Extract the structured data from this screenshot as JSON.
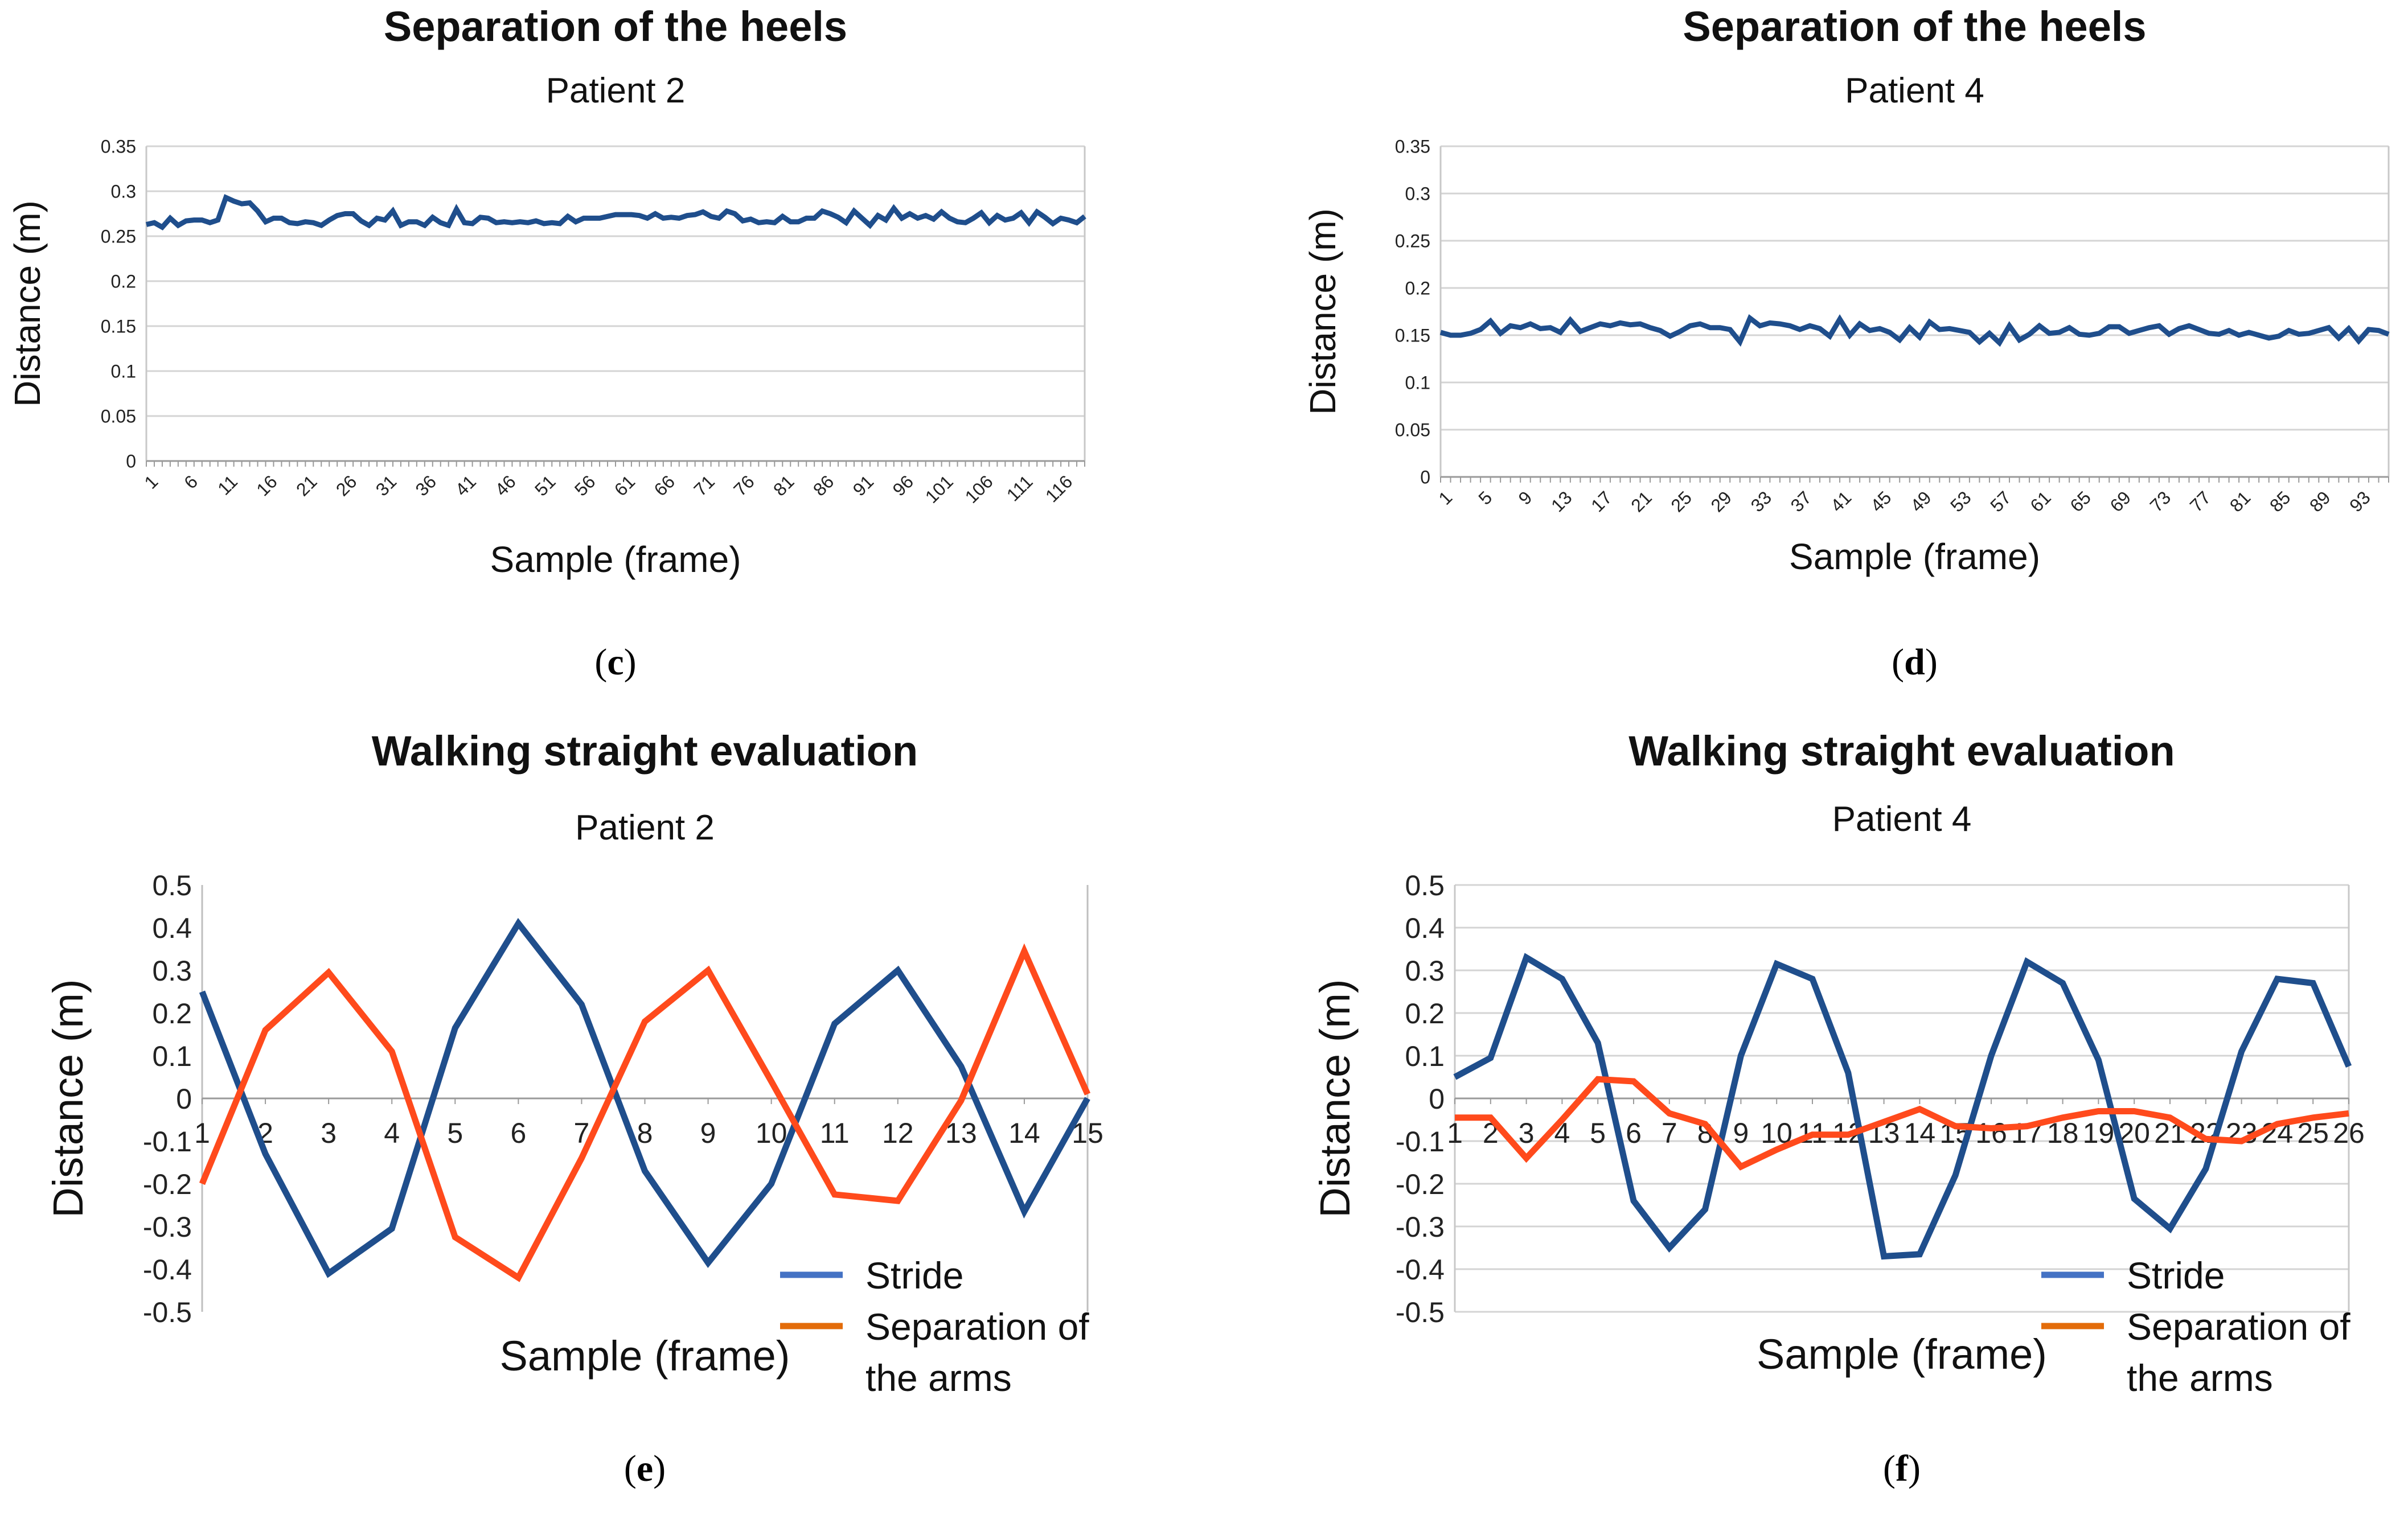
{
  "chart_data": [
    {
      "id": "c",
      "type": "line",
      "title": "Separation of the heels",
      "subtitle": "Patient 2",
      "xlabel": "Sample (frame)",
      "ylabel": "Distance (m)",
      "ylim": [
        0,
        0.35
      ],
      "yticks": [
        "0",
        "0.05",
        "0.1",
        "0.15",
        "0.2",
        "0.25",
        "0.3",
        "0.35"
      ],
      "grid": true,
      "xtick_step": 5,
      "caption": "c",
      "series": [
        {
          "name": "Separation of the heels",
          "color": "#1f4e8c",
          "values": [
            0.263,
            0.265,
            0.26,
            0.27,
            0.262,
            0.267,
            0.268,
            0.268,
            0.265,
            0.268,
            0.293,
            0.289,
            0.286,
            0.287,
            0.278,
            0.266,
            0.27,
            0.27,
            0.265,
            0.264,
            0.266,
            0.265,
            0.262,
            0.268,
            0.273,
            0.275,
            0.275,
            0.267,
            0.262,
            0.27,
            0.268,
            0.278,
            0.262,
            0.266,
            0.266,
            0.262,
            0.271,
            0.265,
            0.262,
            0.28,
            0.265,
            0.264,
            0.271,
            0.27,
            0.265,
            0.266,
            0.265,
            0.266,
            0.265,
            0.267,
            0.264,
            0.265,
            0.264,
            0.272,
            0.266,
            0.27,
            0.27,
            0.27,
            0.272,
            0.274,
            0.274,
            0.274,
            0.273,
            0.27,
            0.275,
            0.27,
            0.271,
            0.27,
            0.273,
            0.274,
            0.277,
            0.272,
            0.27,
            0.278,
            0.275,
            0.267,
            0.269,
            0.265,
            0.266,
            0.265,
            0.272,
            0.266,
            0.266,
            0.27,
            0.27,
            0.278,
            0.275,
            0.271,
            0.265,
            0.278,
            0.27,
            0.262,
            0.273,
            0.268,
            0.281,
            0.27,
            0.275,
            0.27,
            0.273,
            0.269,
            0.277,
            0.27,
            0.266,
            0.265,
            0.27,
            0.276,
            0.265,
            0.273,
            0.268,
            0.27,
            0.276,
            0.265,
            0.277,
            0.271,
            0.264,
            0.27,
            0.268,
            0.265,
            0.272
          ]
        }
      ]
    },
    {
      "id": "d",
      "type": "line",
      "title": "Separation of the heels",
      "subtitle": "Patient 4",
      "xlabel": "Sample (frame)",
      "ylabel": "Distance (m)",
      "ylim": [
        0,
        0.35
      ],
      "yticks": [
        "0",
        "0.05",
        "0.1",
        "0.15",
        "0.2",
        "0.25",
        "0.3",
        "0.35"
      ],
      "grid": true,
      "xtick_step": 4,
      "caption": "d",
      "series": [
        {
          "name": "Separation of the heels",
          "color": "#1f4e8c",
          "values": [
            0.153,
            0.15,
            0.15,
            0.152,
            0.156,
            0.165,
            0.152,
            0.16,
            0.158,
            0.162,
            0.157,
            0.158,
            0.153,
            0.166,
            0.154,
            0.158,
            0.162,
            0.16,
            0.163,
            0.161,
            0.162,
            0.158,
            0.155,
            0.149,
            0.154,
            0.16,
            0.162,
            0.158,
            0.158,
            0.156,
            0.143,
            0.168,
            0.16,
            0.163,
            0.162,
            0.16,
            0.156,
            0.16,
            0.157,
            0.149,
            0.167,
            0.15,
            0.162,
            0.155,
            0.157,
            0.153,
            0.145,
            0.158,
            0.148,
            0.164,
            0.156,
            0.157,
            0.155,
            0.153,
            0.143,
            0.152,
            0.142,
            0.16,
            0.145,
            0.151,
            0.16,
            0.152,
            0.153,
            0.158,
            0.151,
            0.15,
            0.152,
            0.159,
            0.159,
            0.152,
            0.155,
            0.158,
            0.16,
            0.151,
            0.157,
            0.16,
            0.156,
            0.152,
            0.151,
            0.155,
            0.15,
            0.153,
            0.15,
            0.147,
            0.149,
            0.155,
            0.151,
            0.152,
            0.155,
            0.158,
            0.147,
            0.157,
            0.144,
            0.156,
            0.155,
            0.151
          ]
        }
      ]
    },
    {
      "id": "e",
      "type": "line",
      "title": "Walking straight evaluation",
      "subtitle": "Patient 2",
      "xlabel": "Sample (frame)",
      "ylabel": "Distance (m)",
      "ylim": [
        -0.5,
        0.5
      ],
      "yticks": [
        "-0.5",
        "-0.4",
        "-0.3",
        "-0.2",
        "-0.1",
        "0",
        "0.1",
        "0.2",
        "0.3",
        "0.4",
        "0.5"
      ],
      "grid": false,
      "xtick_step": 1,
      "caption": "e",
      "legend": {
        "placement": "bottom-right",
        "items": [
          {
            "label": "Stride",
            "color": "#4472c4"
          },
          {
            "label": "Separation of",
            "color": "#e36c0a"
          },
          {
            "label": "the arms",
            "color": ""
          }
        ]
      },
      "series": [
        {
          "name": "Stride",
          "color": "#1f4e8c",
          "values": [
            0.25,
            -0.13,
            -0.41,
            -0.305,
            0.165,
            0.41,
            0.22,
            -0.17,
            -0.385,
            -0.2,
            0.175,
            0.3,
            0.075,
            -0.265,
            0.0
          ]
        },
        {
          "name": "Separation of the arms",
          "color": "#ff4a1c",
          "values": [
            -0.2,
            0.16,
            0.295,
            0.11,
            -0.325,
            -0.42,
            -0.14,
            0.18,
            0.3,
            0.04,
            -0.225,
            -0.24,
            -0.005,
            0.345,
            0.01
          ]
        }
      ]
    },
    {
      "id": "f",
      "type": "line",
      "title": "Walking straight evaluation",
      "subtitle": "Patient 4",
      "xlabel": "Sample (frame)",
      "ylabel": "Distance (m)",
      "ylim": [
        -0.5,
        0.5
      ],
      "yticks": [
        "-0.5",
        "-0.4",
        "-0.3",
        "-0.2",
        "-0.1",
        "0",
        "0.1",
        "0.2",
        "0.3",
        "0.4",
        "0.5"
      ],
      "grid": true,
      "xtick_step": 1,
      "caption": "f",
      "legend": {
        "placement": "bottom-right",
        "items": [
          {
            "label": "Stride",
            "color": "#4472c4"
          },
          {
            "label": "Separation of",
            "color": "#e36c0a"
          },
          {
            "label": "the arms",
            "color": ""
          }
        ]
      },
      "series": [
        {
          "name": "Stride",
          "color": "#1f4e8c",
          "values": [
            0.05,
            0.095,
            0.33,
            0.28,
            0.13,
            -0.24,
            -0.35,
            -0.26,
            0.1,
            0.315,
            0.28,
            0.06,
            -0.37,
            -0.365,
            -0.18,
            0.1,
            0.32,
            0.27,
            0.09,
            -0.235,
            -0.305,
            -0.165,
            0.11,
            0.28,
            0.27,
            0.075
          ]
        },
        {
          "name": "Separation of the arms",
          "color": "#ff4a1c",
          "values": [
            -0.045,
            -0.045,
            -0.14,
            -0.05,
            0.045,
            0.04,
            -0.035,
            -0.06,
            -0.16,
            -0.12,
            -0.085,
            -0.085,
            -0.055,
            -0.025,
            -0.065,
            -0.07,
            -0.065,
            -0.045,
            -0.03,
            -0.03,
            -0.045,
            -0.095,
            -0.1,
            -0.06,
            -0.045,
            -0.035
          ]
        }
      ]
    }
  ]
}
